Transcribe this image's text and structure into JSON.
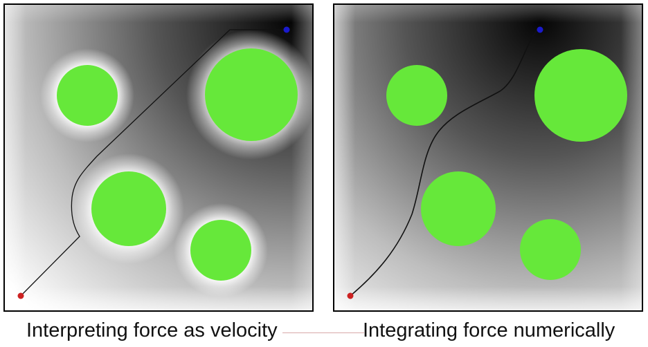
{
  "captions": {
    "left": "Interpreting force as velocity",
    "right": "Integrating force numerically"
  },
  "colors": {
    "obstacle": "#66e83a",
    "start_marker": "#cc2222",
    "goal_marker": "#1a1acc",
    "path": "#111111",
    "field_dark": "#050505",
    "field_light": "#ffffff",
    "frame": "#000000"
  },
  "icons": {
    "start": "red-dot",
    "goal": "blue-dot"
  }
}
